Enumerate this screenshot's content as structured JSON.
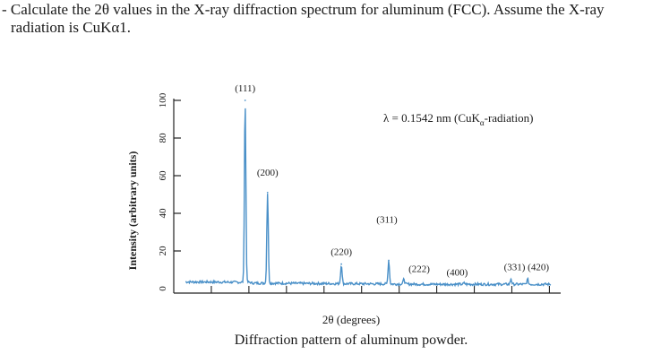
{
  "question": {
    "line1": "- Calculate the 2θ values in the X-ray diffraction spectrum for aluminum (FCC). Assume the X-ray",
    "line2": "radiation is CuKα1."
  },
  "chart_data": {
    "type": "line",
    "ylabel": "Intensity (arbitrary units)",
    "xlabel": "2θ (degrees)",
    "caption": "Diffraction pattern of aluminum powder.",
    "annotation": {
      "text_main": "λ = 0.1542 nm (CuK",
      "text_sub": "α",
      "text_tail": "-radiation)"
    },
    "ylim": [
      0,
      100
    ],
    "yticks": [
      "0",
      "20",
      "40",
      "60",
      "80",
      "100"
    ],
    "xticks_unlabeled": 10,
    "grid": false,
    "line_color": "#4a90c8",
    "peaks": [
      {
        "label": "(111)",
        "x": 38.5,
        "y": 100
      },
      {
        "label": "(200)",
        "x": 44.7,
        "y": 51
      },
      {
        "label": "(220)",
        "x": 65.1,
        "y": 13
      },
      {
        "label": "(311)",
        "x": 78.2,
        "y": 15
      },
      {
        "label": "(222)",
        "x": 82.4,
        "y": 5
      },
      {
        "label": "(400)",
        "x": 99.1,
        "y": 3
      },
      {
        "label": "(331)",
        "x": 112.0,
        "y": 5
      },
      {
        "label": "(420)",
        "x": 116.6,
        "y": 5
      }
    ]
  }
}
